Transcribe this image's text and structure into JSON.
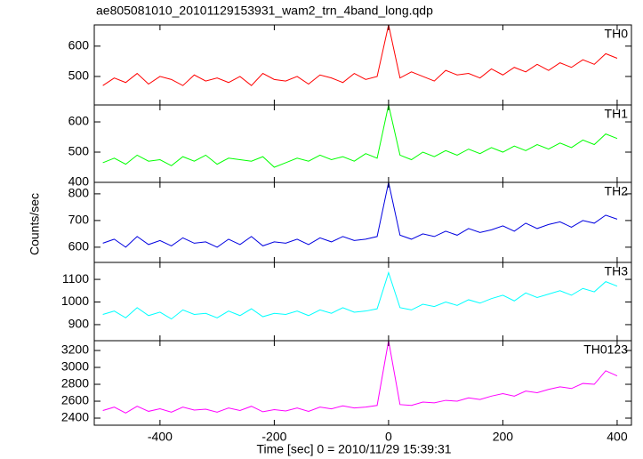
{
  "title": "ae805081010_20101129153931_wam2_trn_4band_long.qdp",
  "x_label": "Time [sec] 0 = 2010/11/29 15:39:31",
  "y_label": "Counts/sec",
  "chart_data": [
    {
      "type": "line",
      "label": "TH0",
      "xlim": [
        -515,
        425
      ],
      "xticks": [
        -400,
        -200,
        0,
        200,
        400
      ],
      "ylim": [
        406,
        670
      ],
      "yticks": [
        500,
        600
      ],
      "x": [
        -500,
        -480,
        -460,
        -440,
        -420,
        -400,
        -380,
        -360,
        -340,
        -320,
        -300,
        -280,
        -260,
        -240,
        -220,
        -200,
        -180,
        -160,
        -140,
        -120,
        -100,
        -80,
        -60,
        -40,
        -20,
        0,
        20,
        40,
        60,
        80,
        100,
        120,
        140,
        160,
        180,
        200,
        220,
        240,
        260,
        280,
        300,
        320,
        340,
        360,
        380,
        400
      ],
      "series": [
        {
          "color": "#ff0000",
          "values": [
            470,
            495,
            480,
            510,
            475,
            500,
            490,
            470,
            505,
            485,
            495,
            480,
            500,
            470,
            510,
            490,
            485,
            500,
            475,
            505,
            495,
            480,
            510,
            490,
            500,
            670,
            495,
            515,
            500,
            485,
            520,
            505,
            510,
            495,
            525,
            505,
            530,
            515,
            540,
            520,
            545,
            530,
            555,
            540,
            575,
            560
          ]
        }
      ]
    },
    {
      "type": "line",
      "label": "TH1",
      "xlim": [
        -515,
        425
      ],
      "xticks": [
        -400,
        -200,
        0,
        200,
        400
      ],
      "ylim": [
        400,
        656
      ],
      "yticks": [
        400,
        500,
        600
      ],
      "x": [
        -500,
        -480,
        -460,
        -440,
        -420,
        -400,
        -380,
        -360,
        -340,
        -320,
        -300,
        -280,
        -260,
        -240,
        -220,
        -200,
        -180,
        -160,
        -140,
        -120,
        -100,
        -80,
        -60,
        -40,
        -20,
        0,
        20,
        40,
        60,
        80,
        100,
        120,
        140,
        160,
        180,
        200,
        220,
        240,
        260,
        280,
        300,
        320,
        340,
        360,
        380,
        400
      ],
      "series": [
        {
          "color": "#00ff00",
          "values": [
            465,
            480,
            460,
            490,
            470,
            475,
            455,
            485,
            470,
            490,
            460,
            480,
            475,
            470,
            485,
            450,
            465,
            480,
            470,
            490,
            475,
            485,
            470,
            495,
            480,
            656,
            490,
            475,
            500,
            485,
            505,
            490,
            510,
            495,
            515,
            500,
            520,
            505,
            525,
            510,
            530,
            515,
            540,
            525,
            560,
            545
          ]
        }
      ]
    },
    {
      "type": "line",
      "label": "TH2",
      "xlim": [
        -515,
        425
      ],
      "xticks": [
        -400,
        -200,
        0,
        200,
        400
      ],
      "ylim": [
        543,
        843
      ],
      "yticks": [
        600,
        700,
        800
      ],
      "x": [
        -500,
        -480,
        -460,
        -440,
        -420,
        -400,
        -380,
        -360,
        -340,
        -320,
        -300,
        -280,
        -260,
        -240,
        -220,
        -200,
        -180,
        -160,
        -140,
        -120,
        -100,
        -80,
        -60,
        -40,
        -20,
        0,
        20,
        40,
        60,
        80,
        100,
        120,
        140,
        160,
        180,
        200,
        220,
        240,
        260,
        280,
        300,
        320,
        340,
        360,
        380,
        400
      ],
      "series": [
        {
          "color": "#0000e0",
          "values": [
            615,
            630,
            600,
            640,
            610,
            625,
            605,
            635,
            615,
            620,
            600,
            630,
            610,
            640,
            605,
            620,
            615,
            630,
            610,
            635,
            620,
            640,
            625,
            630,
            640,
            843,
            645,
            630,
            650,
            640,
            660,
            645,
            670,
            655,
            665,
            680,
            660,
            690,
            670,
            685,
            695,
            675,
            700,
            690,
            720,
            705
          ]
        }
      ]
    },
    {
      "type": "line",
      "label": "TH3",
      "xlim": [
        -515,
        425
      ],
      "xticks": [
        -400,
        -200,
        0,
        200,
        400
      ],
      "ylim": [
        829,
        1175
      ],
      "yticks": [
        900,
        1000,
        1100
      ],
      "x": [
        -500,
        -480,
        -460,
        -440,
        -420,
        -400,
        -380,
        -360,
        -340,
        -320,
        -300,
        -280,
        -260,
        -240,
        -220,
        -200,
        -180,
        -160,
        -140,
        -120,
        -100,
        -80,
        -60,
        -40,
        -20,
        0,
        20,
        40,
        60,
        80,
        100,
        120,
        140,
        160,
        180,
        200,
        220,
        240,
        260,
        280,
        300,
        320,
        340,
        360,
        380,
        400
      ],
      "series": [
        {
          "color": "#00ffff",
          "values": [
            945,
            960,
            930,
            975,
            940,
            955,
            925,
            965,
            945,
            950,
            930,
            960,
            940,
            970,
            935,
            950,
            945,
            960,
            940,
            965,
            950,
            975,
            955,
            960,
            970,
            1130,
            975,
            965,
            990,
            980,
            1000,
            985,
            1010,
            995,
            1015,
            1030,
            1005,
            1040,
            1020,
            1035,
            1050,
            1030,
            1060,
            1045,
            1090,
            1070
          ]
        }
      ]
    },
    {
      "type": "line",
      "label": "TH0123",
      "xlim": [
        -515,
        425
      ],
      "xticks": [
        -400,
        -200,
        0,
        200,
        400
      ],
      "ylim": [
        2316,
        3316
      ],
      "yticks": [
        2400,
        2600,
        2800,
        3000,
        3200
      ],
      "x": [
        -500,
        -480,
        -460,
        -440,
        -420,
        -400,
        -380,
        -360,
        -340,
        -320,
        -300,
        -280,
        -260,
        -240,
        -220,
        -200,
        -180,
        -160,
        -140,
        -120,
        -100,
        -80,
        -60,
        -40,
        -20,
        0,
        20,
        40,
        60,
        80,
        100,
        120,
        140,
        160,
        180,
        200,
        220,
        240,
        260,
        280,
        300,
        320,
        340,
        360,
        380,
        400
      ],
      "series": [
        {
          "color": "#ff00ff",
          "values": [
            2490,
            2530,
            2460,
            2540,
            2480,
            2510,
            2470,
            2530,
            2495,
            2505,
            2470,
            2520,
            2490,
            2540,
            2475,
            2500,
            2485,
            2520,
            2480,
            2530,
            2510,
            2545,
            2520,
            2530,
            2550,
            3316,
            2560,
            2550,
            2590,
            2580,
            2610,
            2600,
            2640,
            2620,
            2660,
            2690,
            2660,
            2720,
            2700,
            2740,
            2770,
            2750,
            2810,
            2800,
            2960,
            2900
          ]
        }
      ]
    }
  ]
}
